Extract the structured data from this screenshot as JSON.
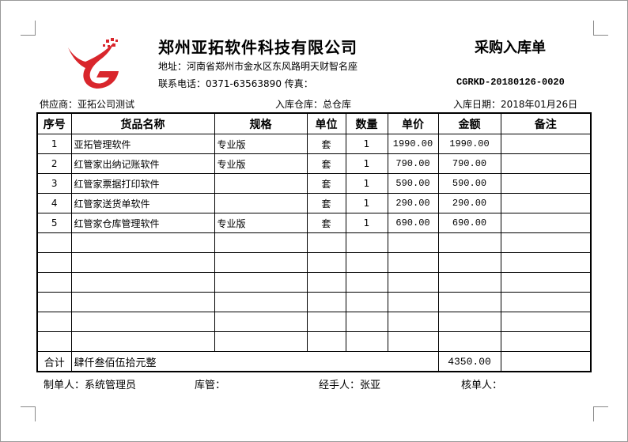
{
  "header": {
    "company": "郑州亚拓软件科技有限公司",
    "address": "地址：河南省郑州市金水区东风路明天财智名座",
    "contact": "联系电话：0371-63563890 传真：",
    "doc_title": "采购入库单",
    "doc_no": "CGRKD-20180126-0020",
    "logo_color": "#d9262c"
  },
  "meta": {
    "supplier": "供应商：亚拓公司测试",
    "warehouse": "入库仓库：总仓库",
    "date": "入库日期：2018年01月26日"
  },
  "table": {
    "columns": [
      "序号",
      "货品名称",
      "规格",
      "单位",
      "数量",
      "单价",
      "金额",
      "备注"
    ],
    "rows": [
      [
        "1",
        "亚拓管理软件",
        "专业版",
        "套",
        "1",
        "1990.00",
        "1990.00",
        ""
      ],
      [
        "2",
        "红管家出纳记账软件",
        "专业版",
        "套",
        "1",
        "790.00",
        "790.00",
        ""
      ],
      [
        "3",
        "红管家票据打印软件",
        "",
        "套",
        "1",
        "590.00",
        "590.00",
        ""
      ],
      [
        "4",
        "红管家送货单软件",
        "",
        "套",
        "1",
        "290.00",
        "290.00",
        ""
      ],
      [
        "5",
        "红管家仓库管理软件",
        "专业版",
        "套",
        "1",
        "690.00",
        "690.00",
        ""
      ],
      [
        "",
        "",
        "",
        "",
        "",
        "",
        "",
        ""
      ],
      [
        "",
        "",
        "",
        "",
        "",
        "",
        "",
        ""
      ],
      [
        "",
        "",
        "",
        "",
        "",
        "",
        "",
        ""
      ],
      [
        "",
        "",
        "",
        "",
        "",
        "",
        "",
        ""
      ],
      [
        "",
        "",
        "",
        "",
        "",
        "",
        "",
        ""
      ],
      [
        "",
        "",
        "",
        "",
        "",
        "",
        "",
        ""
      ]
    ],
    "total_label": "合计",
    "total_words": "肆仟叁佰伍拾元整",
    "total_amount": "4350.00"
  },
  "footer": {
    "maker": "制单人：系统管理员",
    "keeper": "库管：",
    "handler": "经手人：张亚",
    "checker": "核单人："
  }
}
